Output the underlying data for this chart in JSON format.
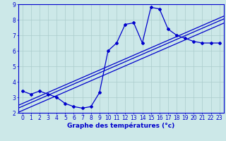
{
  "x_data": [
    0,
    1,
    2,
    3,
    4,
    5,
    6,
    7,
    8,
    9,
    10,
    11,
    12,
    13,
    14,
    15,
    16,
    17,
    18,
    19,
    20,
    21,
    22,
    23
  ],
  "y_data": [
    3.4,
    3.2,
    3.4,
    3.2,
    3.0,
    2.6,
    2.4,
    2.3,
    2.4,
    3.3,
    6.0,
    6.5,
    7.7,
    7.8,
    6.5,
    8.8,
    8.7,
    7.4,
    7.0,
    6.8,
    6.6,
    6.5,
    6.5,
    6.5
  ],
  "line_color": "#0000cc",
  "marker": "D",
  "marker_size": 2.0,
  "bg_color": "#cce8e8",
  "grid_color": "#aacccc",
  "axis_color": "#0000cc",
  "xlabel": "Graphe des températures (°c)",
  "xlabel_fontsize": 6.5,
  "tick_fontsize": 5.5,
  "xlim": [
    -0.5,
    23.5
  ],
  "ylim": [
    2.0,
    9.0
  ],
  "yticks": [
    2,
    3,
    4,
    5,
    6,
    7,
    8,
    9
  ],
  "xticks": [
    0,
    1,
    2,
    3,
    4,
    5,
    6,
    7,
    8,
    9,
    10,
    11,
    12,
    13,
    14,
    15,
    16,
    17,
    18,
    19,
    20,
    21,
    22,
    23
  ],
  "reg_offsets": [
    0.0,
    -0.18,
    -0.45
  ],
  "regression_color": "#0000cc",
  "regression_lw": 0.9,
  "line_lw": 0.9
}
